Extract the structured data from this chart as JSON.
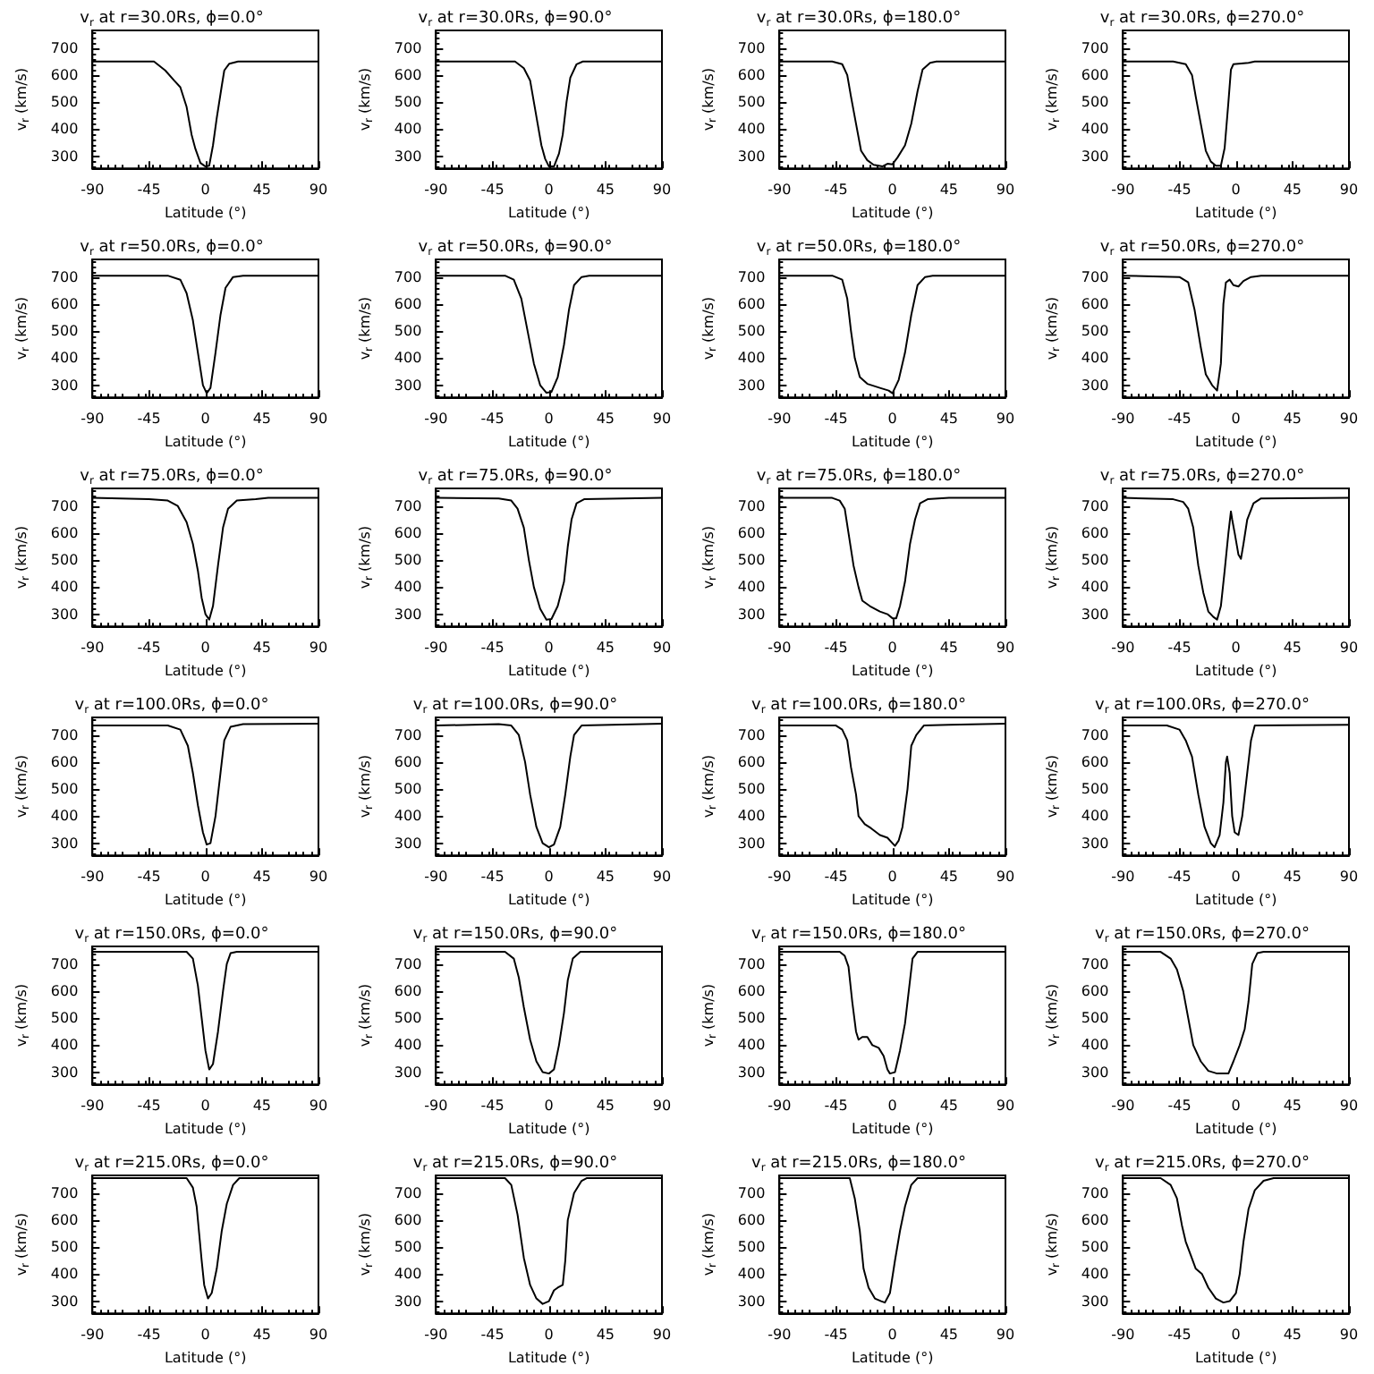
{
  "chart_data": [
    {
      "type": "line",
      "title": "v$_{r}$ at r=30.0Rs, ϕ=0.0°",
      "xlabel": "Latitude (°)",
      "ylabel": "v$_{r}$ (km/s)",
      "xlim": [
        -90,
        90
      ],
      "xticks": [
        -90,
        -45,
        0,
        45,
        90
      ],
      "ylim": [
        255,
        765
      ],
      "yticks": [
        300,
        400,
        500,
        600,
        700
      ],
      "grid": false,
      "marker": "none",
      "line_style": "solid",
      "color": "#000000",
      "x": [
        -90,
        -41,
        -32,
        -25,
        -20,
        -15,
        -11,
        -8,
        -4,
        0,
        3,
        6,
        9,
        13,
        15,
        19,
        26,
        90
      ],
      "values": [
        650,
        650,
        617,
        580,
        555,
        482,
        379,
        327,
        275,
        262,
        265,
        340,
        441,
        560,
        617,
        642,
        650,
        650
      ]
    },
    {
      "type": "line",
      "title": "v$_{r}$ at r=30.0Rs, ϕ=90.0°",
      "xlabel": "Latitude (°)",
      "ylabel": "v$_{r}$ (km/s)",
      "xlim": [
        -90,
        90
      ],
      "xticks": [
        -90,
        -45,
        0,
        45,
        90
      ],
      "ylim": [
        255,
        765
      ],
      "yticks": [
        300,
        400,
        500,
        600,
        700
      ],
      "grid": false,
      "marker": "none",
      "line_style": "solid",
      "color": "#000000",
      "x": [
        -90,
        -27,
        -20,
        -15,
        -12,
        -9,
        -6,
        -3,
        0,
        4,
        8,
        11,
        14,
        17,
        22,
        27,
        90
      ],
      "values": [
        650,
        650,
        625,
        580,
        500,
        420,
        340,
        290,
        262,
        262,
        310,
        380,
        500,
        590,
        640,
        650,
        650
      ]
    },
    {
      "type": "line",
      "title": "v$_{r}$ at r=30.0Rs, ϕ=180.0°",
      "xlabel": "Latitude (°)",
      "ylabel": "v$_{r}$ (km/s)",
      "xlim": [
        -90,
        90
      ],
      "xticks": [
        -90,
        -45,
        0,
        45,
        90
      ],
      "ylim": [
        255,
        765
      ],
      "yticks": [
        300,
        400,
        500,
        600,
        700
      ],
      "grid": false,
      "marker": "none",
      "line_style": "solid",
      "color": "#000000",
      "x": [
        -90,
        -48,
        -40,
        -36,
        -33,
        -29,
        -25,
        -20,
        -15,
        -8,
        -4,
        0,
        4,
        10,
        15,
        20,
        24,
        30,
        35,
        90
      ],
      "values": [
        650,
        650,
        640,
        600,
        520,
        420,
        320,
        285,
        268,
        262,
        272,
        270,
        295,
        340,
        420,
        540,
        620,
        645,
        650,
        650
      ]
    },
    {
      "type": "line",
      "title": "v$_{r}$ at r=30.0Rs, ϕ=270.0°",
      "xlabel": "Latitude (°)",
      "ylabel": "v$_{r}$ (km/s)",
      "xlim": [
        -90,
        90
      ],
      "xticks": [
        -90,
        -45,
        0,
        45,
        90
      ],
      "ylim": [
        255,
        765
      ],
      "yticks": [
        300,
        400,
        500,
        600,
        700
      ],
      "grid": false,
      "marker": "none",
      "line_style": "solid",
      "color": "#000000",
      "x": [
        -90,
        -50,
        -40,
        -35,
        -32,
        -28,
        -24,
        -20,
        -16,
        -12,
        -9,
        -6,
        -4,
        -2,
        10,
        15,
        90
      ],
      "values": [
        650,
        650,
        640,
        600,
        520,
        420,
        320,
        280,
        265,
        265,
        330,
        500,
        620,
        640,
        645,
        650,
        650
      ]
    },
    {
      "type": "line",
      "title": "v$_{r}$ at r=50.0Rs, ϕ=0.0°",
      "xlabel": "Latitude (°)",
      "ylabel": "v$_{r}$ (km/s)",
      "xlim": [
        -90,
        90
      ],
      "xticks": [
        -90,
        -45,
        0,
        45,
        90
      ],
      "ylim": [
        255,
        765
      ],
      "yticks": [
        300,
        400,
        500,
        600,
        700
      ],
      "grid": false,
      "marker": "none",
      "line_style": "solid",
      "color": "#000000",
      "x": [
        -90,
        -30,
        -20,
        -15,
        -10,
        -6,
        -2,
        1,
        4,
        8,
        12,
        16,
        22,
        30,
        90
      ],
      "values": [
        705,
        705,
        690,
        640,
        540,
        420,
        300,
        270,
        290,
        420,
        560,
        660,
        700,
        705,
        705
      ]
    },
    {
      "type": "line",
      "title": "v$_{r}$ at r=50.0Rs, ϕ=90.0°",
      "xlabel": "Latitude (°)",
      "ylabel": "v$_{r}$ (km/s)",
      "xlim": [
        -90,
        90
      ],
      "xticks": [
        -90,
        -45,
        0,
        45,
        90
      ],
      "ylim": [
        255,
        765
      ],
      "yticks": [
        300,
        400,
        500,
        600,
        700
      ],
      "grid": false,
      "marker": "none",
      "line_style": "solid",
      "color": "#000000",
      "x": [
        -90,
        -35,
        -28,
        -22,
        -17,
        -12,
        -7,
        -2,
        2,
        7,
        12,
        16,
        20,
        26,
        32,
        90
      ],
      "values": [
        705,
        705,
        690,
        620,
        500,
        380,
        300,
        272,
        275,
        330,
        450,
        580,
        670,
        700,
        705,
        705
      ]
    },
    {
      "type": "line",
      "title": "v$_{r}$ at r=50.0Rs, ϕ=180.0°",
      "xlabel": "Latitude (°)",
      "ylabel": "v$_{r}$ (km/s)",
      "xlim": [
        -90,
        90
      ],
      "xticks": [
        -90,
        -45,
        0,
        45,
        90
      ],
      "ylim": [
        255,
        765
      ],
      "yticks": [
        300,
        400,
        500,
        600,
        700
      ],
      "grid": false,
      "marker": "none",
      "line_style": "solid",
      "color": "#000000",
      "x": [
        -90,
        -48,
        -40,
        -36,
        -33,
        -30,
        -26,
        -20,
        -10,
        -3,
        0,
        5,
        10,
        15,
        20,
        26,
        32,
        90
      ],
      "values": [
        705,
        705,
        690,
        620,
        500,
        400,
        330,
        305,
        290,
        280,
        270,
        320,
        420,
        560,
        670,
        700,
        705,
        705
      ]
    },
    {
      "type": "line",
      "title": "v$_{r}$ at r=50.0Rs, ϕ=270.0°",
      "xlabel": "Latitude (°)",
      "ylabel": "v$_{r}$ (km/s)",
      "xlim": [
        -90,
        90
      ],
      "xticks": [
        -90,
        -45,
        0,
        45,
        90
      ],
      "ylim": [
        255,
        765
      ],
      "yticks": [
        300,
        400,
        500,
        600,
        700
      ],
      "grid": false,
      "marker": "none",
      "line_style": "solid",
      "color": "#000000",
      "x": [
        -90,
        -45,
        -38,
        -33,
        -28,
        -24,
        -19,
        -15,
        -12,
        -10,
        -8,
        -5,
        -2,
        2,
        6,
        12,
        20,
        90
      ],
      "values": [
        705,
        700,
        680,
        580,
        440,
        340,
        300,
        280,
        380,
        600,
        680,
        690,
        670,
        665,
        685,
        700,
        705,
        705
      ]
    },
    {
      "type": "line",
      "title": "v$_{r}$ at r=75.0Rs, ϕ=0.0°",
      "xlabel": "Latitude (°)",
      "ylabel": "v$_{r}$ (km/s)",
      "xlim": [
        -90,
        90
      ],
      "xticks": [
        -90,
        -45,
        0,
        45,
        90
      ],
      "ylim": [
        255,
        765
      ],
      "yticks": [
        300,
        400,
        500,
        600,
        700
      ],
      "grid": false,
      "marker": "none",
      "line_style": "solid",
      "color": "#000000",
      "x": [
        -90,
        -45,
        -30,
        -22,
        -15,
        -10,
        -6,
        -3,
        0,
        3,
        6,
        10,
        14,
        18,
        25,
        40,
        50,
        90
      ],
      "values": [
        730,
        725,
        720,
        700,
        640,
        560,
        460,
        360,
        300,
        280,
        330,
        480,
        620,
        690,
        720,
        725,
        730,
        730
      ]
    },
    {
      "type": "line",
      "title": "v$_{r}$ at r=75.0Rs, ϕ=90.0°",
      "xlabel": "Latitude (°)",
      "ylabel": "v$_{r}$ (km/s)",
      "xlim": [
        -90,
        90
      ],
      "xticks": [
        -90,
        -45,
        0,
        45,
        90
      ],
      "ylim": [
        255,
        765
      ],
      "yticks": [
        300,
        400,
        500,
        600,
        700
      ],
      "grid": false,
      "marker": "none",
      "line_style": "solid",
      "color": "#000000",
      "x": [
        -90,
        -40,
        -30,
        -25,
        -20,
        -16,
        -12,
        -7,
        -2,
        2,
        7,
        12,
        15,
        18,
        22,
        28,
        90
      ],
      "values": [
        730,
        728,
        720,
        690,
        620,
        500,
        400,
        320,
        280,
        282,
        330,
        420,
        550,
        650,
        710,
        725,
        730
      ]
    },
    {
      "type": "line",
      "title": "v$_{r}$ at r=75.0Rs, ϕ=180.0°",
      "xlabel": "Latitude (°)",
      "ylabel": "v$_{r}$ (km/s)",
      "xlim": [
        -90,
        90
      ],
      "xticks": [
        -90,
        -45,
        0,
        45,
        90
      ],
      "ylim": [
        255,
        765
      ],
      "yticks": [
        300,
        400,
        500,
        600,
        700
      ],
      "grid": false,
      "marker": "none",
      "line_style": "solid",
      "color": "#000000",
      "x": [
        -90,
        -48,
        -42,
        -38,
        -35,
        -31,
        -27,
        -24,
        -18,
        -10,
        -4,
        0,
        3,
        6,
        10,
        14,
        18,
        22,
        28,
        45,
        90
      ],
      "values": [
        730,
        730,
        720,
        690,
        600,
        480,
        400,
        350,
        330,
        310,
        300,
        285,
        285,
        330,
        420,
        560,
        650,
        710,
        725,
        730,
        730
      ]
    },
    {
      "type": "line",
      "title": "v$_{r}$ at r=75.0Rs, ϕ=270.0°",
      "xlabel": "Latitude (°)",
      "ylabel": "v$_{r}$ (km/s)",
      "xlim": [
        -90,
        90
      ],
      "xticks": [
        -90,
        -45,
        0,
        45,
        90
      ],
      "ylim": [
        255,
        765
      ],
      "yticks": [
        300,
        400,
        500,
        600,
        700
      ],
      "grid": false,
      "marker": "none",
      "line_style": "solid",
      "color": "#000000",
      "x": [
        -90,
        -50,
        -42,
        -38,
        -34,
        -30,
        -26,
        -22,
        -18,
        -15,
        -12,
        -9,
        -6,
        -4,
        -3,
        -1,
        2,
        4,
        6,
        9,
        14,
        20,
        90
      ],
      "values": [
        730,
        725,
        715,
        690,
        620,
        480,
        380,
        310,
        290,
        280,
        330,
        460,
        600,
        680,
        650,
        600,
        520,
        505,
        560,
        650,
        710,
        728,
        730
      ]
    },
    {
      "type": "line",
      "title": "v$_{r}$ at r=100.0Rs, ϕ=0.0°",
      "xlabel": "Latitude (°)",
      "ylabel": "v$_{r}$ (km/s)",
      "xlim": [
        -90,
        90
      ],
      "xticks": [
        -90,
        -45,
        0,
        45,
        90
      ],
      "ylim": [
        255,
        765
      ],
      "yticks": [
        300,
        400,
        500,
        600,
        700
      ],
      "grid": false,
      "marker": "none",
      "line_style": "solid",
      "color": "#000000",
      "x": [
        -90,
        -30,
        -20,
        -14,
        -10,
        -6,
        -2,
        1,
        4,
        8,
        12,
        15,
        20,
        30,
        90
      ],
      "values": [
        735,
        735,
        720,
        660,
        560,
        440,
        340,
        295,
        300,
        400,
        560,
        680,
        730,
        740,
        742
      ]
    },
    {
      "type": "line",
      "title": "v$_{r}$ at r=100.0Rs, ϕ=90.0°",
      "xlabel": "Latitude (°)",
      "ylabel": "v$_{r}$ (km/s)",
      "xlim": [
        -90,
        90
      ],
      "xticks": [
        -90,
        -45,
        0,
        45,
        90
      ],
      "ylim": [
        255,
        765
      ],
      "yticks": [
        300,
        400,
        500,
        600,
        700
      ],
      "grid": false,
      "marker": "none",
      "line_style": "solid",
      "color": "#000000",
      "x": [
        -90,
        -40,
        -30,
        -24,
        -19,
        -15,
        -10,
        -5,
        0,
        4,
        9,
        13,
        17,
        20,
        26,
        90
      ],
      "values": [
        735,
        740,
        735,
        700,
        600,
        480,
        360,
        300,
        285,
        295,
        360,
        480,
        620,
        700,
        735,
        742
      ]
    },
    {
      "type": "line",
      "title": "v$_{r}$ at r=100.0Rs, ϕ=180.0°",
      "xlabel": "Latitude (°)",
      "ylabel": "v$_{r}$ (km/s)",
      "xlim": [
        -90,
        90
      ],
      "xticks": [
        -90,
        -45,
        0,
        45,
        90
      ],
      "ylim": [
        255,
        765
      ],
      "yticks": [
        300,
        400,
        500,
        600,
        700
      ],
      "grid": false,
      "marker": "none",
      "line_style": "solid",
      "color": "#000000",
      "x": [
        -90,
        -45,
        -40,
        -36,
        -33,
        -29,
        -27,
        -22,
        -17,
        -10,
        -4,
        0,
        2,
        5,
        8,
        12,
        15,
        19,
        25,
        45,
        90
      ],
      "values": [
        735,
        735,
        720,
        680,
        580,
        480,
        400,
        370,
        355,
        330,
        320,
        300,
        290,
        310,
        360,
        500,
        660,
        700,
        735,
        738,
        742
      ]
    },
    {
      "type": "line",
      "title": "v$_{r}$ at r=100.0Rs, ϕ=270.0°",
      "xlabel": "Latitude (°)",
      "ylabel": "v$_{r}$ (km/s)",
      "xlim": [
        -90,
        90
      ],
      "xticks": [
        -90,
        -45,
        0,
        45,
        90
      ],
      "ylim": [
        255,
        765
      ],
      "yticks": [
        300,
        400,
        500,
        600,
        700
      ],
      "grid": false,
      "marker": "none",
      "line_style": "solid",
      "color": "#000000",
      "x": [
        -90,
        -55,
        -45,
        -40,
        -35,
        -30,
        -25,
        -20,
        -17,
        -13,
        -10,
        -8,
        -7,
        -5,
        -3,
        -1,
        2,
        5,
        9,
        12,
        15,
        90
      ],
      "values": [
        735,
        735,
        720,
        680,
        620,
        480,
        360,
        300,
        285,
        330,
        450,
        600,
        620,
        560,
        400,
        340,
        330,
        400,
        560,
        680,
        735,
        738
      ]
    },
    {
      "type": "line",
      "title": "v$_{r}$ at r=150.0Rs, ϕ=0.0°",
      "xlabel": "Latitude (°)",
      "ylabel": "v$_{r}$ (km/s)",
      "xlim": [
        -90,
        90
      ],
      "xticks": [
        -90,
        -45,
        0,
        45,
        90
      ],
      "ylim": [
        255,
        765
      ],
      "yticks": [
        300,
        400,
        500,
        600,
        700
      ],
      "grid": false,
      "marker": "none",
      "line_style": "solid",
      "color": "#000000",
      "x": [
        -90,
        -15,
        -10,
        -6,
        -3,
        0,
        3,
        6,
        10,
        14,
        17,
        20,
        25,
        90
      ],
      "values": [
        745,
        745,
        720,
        620,
        500,
        380,
        310,
        330,
        450,
        600,
        700,
        740,
        745,
        745
      ]
    },
    {
      "type": "line",
      "title": "v$_{r}$ at r=150.0Rs, ϕ=90.0°",
      "xlabel": "Latitude (°)",
      "ylabel": "v$_{r}$ (km/s)",
      "xlim": [
        -90,
        90
      ],
      "xticks": [
        -90,
        -45,
        0,
        45,
        90
      ],
      "ylim": [
        255,
        765
      ],
      "yticks": [
        300,
        400,
        500,
        600,
        700
      ],
      "grid": false,
      "marker": "none",
      "line_style": "solid",
      "color": "#000000",
      "x": [
        -90,
        -35,
        -28,
        -24,
        -20,
        -15,
        -10,
        -5,
        0,
        4,
        8,
        12,
        15,
        19,
        25,
        90
      ],
      "values": [
        745,
        745,
        720,
        650,
        540,
        420,
        340,
        300,
        295,
        310,
        400,
        520,
        640,
        720,
        745,
        745
      ]
    },
    {
      "type": "line",
      "title": "v$_{r}$ at r=150.0Rs, ϕ=180.0°",
      "xlabel": "Latitude (°)",
      "ylabel": "v$_{r}$ (km/s)",
      "xlim": [
        -90,
        90
      ],
      "xticks": [
        -90,
        -45,
        0,
        45,
        90
      ],
      "ylim": [
        255,
        765
      ],
      "yticks": [
        300,
        400,
        500,
        600,
        700
      ],
      "grid": false,
      "marker": "none",
      "line_style": "solid",
      "color": "#000000",
      "x": [
        -90,
        -42,
        -38,
        -35,
        -32,
        -29,
        -27,
        -24,
        -20,
        -16,
        -11,
        -7,
        -4,
        -2,
        2,
        6,
        10,
        13,
        16,
        20,
        90
      ],
      "values": [
        745,
        745,
        730,
        690,
        560,
        450,
        420,
        430,
        430,
        400,
        390,
        360,
        310,
        295,
        300,
        380,
        480,
        600,
        720,
        745,
        745
      ]
    },
    {
      "type": "line",
      "title": "v$_{r}$ at r=150.0Rs, ϕ=270.0°",
      "xlabel": "Latitude (°)",
      "ylabel": "v$_{r}$ (km/s)",
      "xlim": [
        -90,
        90
      ],
      "xticks": [
        -90,
        -45,
        0,
        45,
        90
      ],
      "ylim": [
        255,
        765
      ],
      "yticks": [
        300,
        400,
        500,
        600,
        700
      ],
      "grid": false,
      "marker": "none",
      "line_style": "solid",
      "color": "#000000",
      "x": [
        -90,
        -60,
        -52,
        -47,
        -42,
        -38,
        -34,
        -28,
        -22,
        -15,
        -6,
        -2,
        3,
        7,
        10,
        13,
        17,
        22,
        90
      ],
      "values": [
        745,
        745,
        720,
        680,
        600,
        500,
        400,
        340,
        305,
        295,
        295,
        340,
        400,
        460,
        560,
        700,
        740,
        745,
        745
      ]
    },
    {
      "type": "line",
      "title": "v$_{r}$ at r=215.0Rs, ϕ=0.0°",
      "xlabel": "Latitude (°)",
      "ylabel": "v$_{r}$ (km/s)",
      "xlim": [
        -90,
        90
      ],
      "xticks": [
        -90,
        -45,
        0,
        45,
        90
      ],
      "ylim": [
        255,
        765
      ],
      "yticks": [
        300,
        400,
        500,
        600,
        700
      ],
      "grid": false,
      "marker": "none",
      "line_style": "solid",
      "color": "#000000",
      "x": [
        -90,
        -15,
        -10,
        -7,
        -5,
        -3,
        -1,
        2,
        5,
        9,
        13,
        17,
        22,
        27,
        90
      ],
      "values": [
        755,
        755,
        720,
        650,
        550,
        450,
        360,
        310,
        330,
        420,
        560,
        660,
        730,
        755,
        755
      ]
    },
    {
      "type": "line",
      "title": "v$_{r}$ at r=215.0Rs, ϕ=90.0°",
      "xlabel": "Latitude (°)",
      "ylabel": "v$_{r}$ (km/s)",
      "xlim": [
        -90,
        90
      ],
      "xticks": [
        -90,
        -45,
        0,
        45,
        90
      ],
      "ylim": [
        255,
        765
      ],
      "yticks": [
        300,
        400,
        500,
        600,
        700
      ],
      "grid": false,
      "marker": "none",
      "line_style": "solid",
      "color": "#000000",
      "x": [
        -90,
        -35,
        -30,
        -25,
        -20,
        -15,
        -10,
        -5,
        0,
        4,
        7,
        11,
        13,
        15,
        20,
        26,
        30,
        90
      ],
      "values": [
        755,
        755,
        730,
        620,
        460,
        360,
        310,
        290,
        300,
        340,
        350,
        360,
        450,
        600,
        700,
        745,
        755,
        755
      ]
    },
    {
      "type": "line",
      "title": "v$_{r}$ at r=215.0Rs, ϕ=180.0°",
      "xlabel": "Latitude (°)",
      "ylabel": "v$_{r}$ (km/s)",
      "xlim": [
        -90,
        90
      ],
      "xticks": [
        -90,
        -45,
        0,
        45,
        90
      ],
      "ylim": [
        255,
        765
      ],
      "yticks": [
        300,
        400,
        500,
        600,
        700
      ],
      "grid": false,
      "marker": "none",
      "line_style": "solid",
      "color": "#000000",
      "x": [
        -90,
        -34,
        -30,
        -26,
        -23,
        -19,
        -14,
        -9,
        -6,
        -2,
        2,
        6,
        10,
        15,
        20,
        90
      ],
      "values": [
        755,
        755,
        680,
        560,
        420,
        350,
        310,
        300,
        295,
        330,
        450,
        560,
        650,
        730,
        755,
        755
      ]
    },
    {
      "type": "line",
      "title": "v$_{r}$ at r=215.0Rs, ϕ=270.0°",
      "xlabel": "Latitude (°)",
      "ylabel": "v$_{r}$ (km/s)",
      "xlim": [
        -90,
        90
      ],
      "xticks": [
        -90,
        -45,
        0,
        45,
        90
      ],
      "ylim": [
        255,
        765
      ],
      "yticks": [
        300,
        400,
        500,
        600,
        700
      ],
      "grid": false,
      "marker": "none",
      "line_style": "solid",
      "color": "#000000",
      "x": [
        -90,
        -60,
        -52,
        -47,
        -43,
        -40,
        -36,
        -32,
        -27,
        -22,
        -16,
        -10,
        -5,
        0,
        3,
        6,
        10,
        15,
        22,
        30,
        90
      ],
      "values": [
        755,
        755,
        730,
        680,
        580,
        520,
        470,
        420,
        400,
        350,
        310,
        295,
        300,
        330,
        400,
        520,
        640,
        710,
        745,
        755,
        755
      ]
    }
  ]
}
